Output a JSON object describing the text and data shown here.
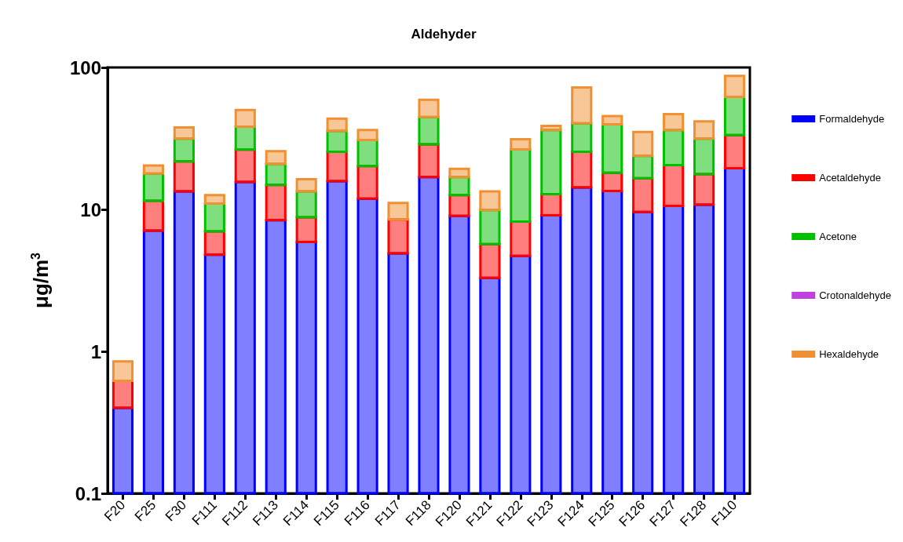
{
  "chart_data": {
    "type": "bar",
    "title": "Aldehyder",
    "ylabel": "μg/m$^{3}$",
    "stacked": true,
    "log": "y",
    "grid": false,
    "legend": "right",
    "categories": [
      "F20",
      "F25",
      "F30",
      "F111",
      "F112",
      "F113",
      "F114",
      "F115",
      "F116",
      "F117",
      "F118",
      "F120",
      "F121",
      "F122",
      "F123",
      "F124",
      "F125",
      "F126",
      "F127",
      "F128",
      "F110"
    ],
    "ylim": [
      0.1,
      100
    ],
    "yticks": [
      0.1,
      1,
      10,
      100
    ],
    "series": [
      {
        "name": "Formaldehyde",
        "color": "#0000ff",
        "values": [
          0.4,
          7.1,
          13.4,
          4.8,
          15.6,
          8.4,
          5.9,
          15.8,
          11.9,
          4.9,
          16.9,
          9.0,
          3.3,
          4.7,
          9.1,
          14.3,
          13.5,
          9.6,
          10.6,
          10.8,
          19.5
        ]
      },
      {
        "name": "Acetaldehyde",
        "color": "#ff0000",
        "values": [
          0.22,
          4.4,
          8.4,
          2.2,
          10.8,
          6.5,
          2.9,
          9.7,
          8.3,
          3.6,
          11.8,
          3.6,
          2.4,
          3.5,
          3.7,
          11.2,
          4.6,
          7.0,
          9.9,
          6.9,
          13.9
        ]
      },
      {
        "name": "Acetone",
        "color": "#00c000",
        "values": [
          null,
          6.4,
          9.7,
          4.0,
          11.9,
          6.0,
          4.6,
          10.2,
          10.6,
          null,
          16.0,
          4.3,
          4.2,
          18.3,
          23.4,
          14.9,
          21.7,
          7.2,
          15.7,
          13.8,
          28.7
        ]
      },
      {
        "name": "Crotonaldehyde",
        "color": "#c040e0",
        "values": [
          null,
          null,
          null,
          null,
          null,
          null,
          null,
          null,
          null,
          null,
          null,
          null,
          null,
          null,
          null,
          null,
          null,
          null,
          null,
          null,
          null
        ]
      },
      {
        "name": "Hexaldehyde",
        "color": "#f09030",
        "values": [
          0.23,
          2.5,
          6.3,
          1.6,
          11.9,
          4.8,
          2.9,
          7.9,
          5.4,
          2.6,
          14.5,
          2.4,
          3.5,
          4.7,
          2.6,
          32.0,
          5.6,
          11.3,
          10.7,
          10.2,
          25.2
        ]
      }
    ]
  }
}
